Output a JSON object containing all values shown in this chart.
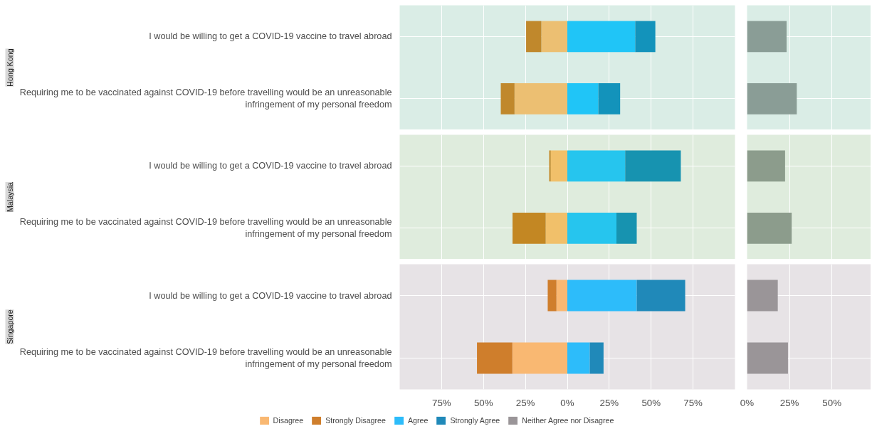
{
  "chart_data": [
    {
      "type": "bar",
      "orientation": "horizontal",
      "stacked": true,
      "title": "Hong Kong",
      "categories": [
        "I would be willing to get a COVID-19 vaccine to travel abroad",
        "Requiring me to be vaccinated against COVID-19 before travelling would be an unreasonable infringement of my personal freedom"
      ],
      "series": [
        {
          "color": "#ecbf72",
          "values": [
            -15.5,
            -31.5
          ]
        },
        {
          "color": "#c0882c",
          "values": [
            -9.1,
            -8.2
          ]
        },
        {
          "color": "#20c5f7",
          "values": [
            40.5,
            18.5
          ]
        },
        {
          "color": "#1393bb",
          "values": [
            12,
            13
          ]
        }
      ],
      "xlim": [
        -100,
        100
      ],
      "xticks": [
        {
          "value": -75,
          "label": "75%"
        },
        {
          "value": -50,
          "label": "50%"
        },
        {
          "value": -25,
          "label": "25%"
        },
        {
          "value": 0,
          "label": "0%"
        },
        {
          "value": 25,
          "label": "25%"
        },
        {
          "value": 50,
          "label": "50%"
        },
        {
          "value": 75,
          "label": "75%"
        }
      ],
      "grid": true,
      "tick_labels": "y"
    },
    {
      "type": "bar",
      "orientation": "horizontal",
      "categories": [
        "I would be willing to get a COVID-19 vaccine to travel abroad",
        "Requiring me to be vaccinated against COVID-19 before travelling would be an unreasonable infringement of my personal freedom"
      ],
      "series": [
        {
          "color": "#8a9d96",
          "values": [
            23.3,
            29.3
          ]
        }
      ],
      "xlim": [
        0,
        73
      ],
      "xticks": [
        {
          "value": 0,
          "label": "0%"
        },
        {
          "value": 25,
          "label": "25%"
        },
        {
          "value": 50,
          "label": "50%"
        }
      ],
      "grid": true,
      "tick_labels": false
    },
    {
      "type": "bar",
      "orientation": "horizontal",
      "stacked": true,
      "title": "Malaysia",
      "categories": [
        "I would be willing to get a COVID-19 vaccine to travel abroad",
        "Requiring me to be vaccinated against COVID-19 before travelling would be an unreasonable infringement of my personal freedom"
      ],
      "series": [
        {
          "color": "#f1c06a",
          "values": [
            -9.9,
            -12.9
          ]
        },
        {
          "color": "#c38723",
          "values": [
            -0.9,
            -19.8
          ]
        },
        {
          "color": "#26c5ee",
          "values": [
            34.5,
            29.3
          ]
        },
        {
          "color": "#1793b0",
          "values": [
            33.2,
            12.1
          ]
        }
      ],
      "xlim": [
        -100,
        100
      ],
      "xticks": [
        {
          "value": -75,
          "label": "75%"
        },
        {
          "value": -50,
          "label": "50%"
        },
        {
          "value": -25,
          "label": "25%"
        },
        {
          "value": 0,
          "label": "0%"
        },
        {
          "value": 25,
          "label": "25%"
        },
        {
          "value": 50,
          "label": "50%"
        },
        {
          "value": 75,
          "label": "75%"
        }
      ],
      "grid": true,
      "tick_labels": "y"
    },
    {
      "type": "bar",
      "orientation": "horizontal",
      "categories": [
        "I would be willing to get a COVID-19 vaccine to travel abroad",
        "Requiring me to be vaccinated against COVID-19 before travelling would be an unreasonable infringement of my personal freedom"
      ],
      "series": [
        {
          "color": "#8c9c8c",
          "values": [
            22.4,
            26.3
          ]
        }
      ],
      "xlim": [
        0,
        73
      ],
      "xticks": [
        {
          "value": 0,
          "label": "0%"
        },
        {
          "value": 25,
          "label": "25%"
        },
        {
          "value": 50,
          "label": "50%"
        }
      ],
      "grid": true,
      "tick_labels": false
    },
    {
      "type": "bar",
      "orientation": "horizontal",
      "stacked": true,
      "title": "Singapore",
      "categories": [
        "I would be willing to get a COVID-19 vaccine to travel abroad",
        "Requiring me to be vaccinated against COVID-19 before travelling would be an unreasonable infringement of my personal freedom"
      ],
      "series": [
        {
          "name": "Disagree",
          "color": "#f9b872",
          "values": [
            -6.5,
            -32.8
          ]
        },
        {
          "name": "Strongly Disagree",
          "color": "#cf7e2c",
          "values": [
            -5.2,
            -21.1
          ]
        },
        {
          "name": "Agree",
          "color": "#2dbcfa",
          "values": [
            41.4,
            13.4
          ]
        },
        {
          "name": "Strongly Agree",
          "color": "#2089b9",
          "values": [
            28.9,
            8.2
          ]
        }
      ],
      "xlim": [
        -100,
        100
      ],
      "xticks": [
        {
          "value": -75,
          "label": "75%"
        },
        {
          "value": -50,
          "label": "50%"
        },
        {
          "value": -25,
          "label": "25%"
        },
        {
          "value": 0,
          "label": "0%"
        },
        {
          "value": 25,
          "label": "25%"
        },
        {
          "value": 50,
          "label": "50%"
        },
        {
          "value": 75,
          "label": "75%"
        }
      ],
      "grid": true,
      "legend": "bottom"
    },
    {
      "type": "bar",
      "orientation": "horizontal",
      "categories": [
        "I would be willing to get a COVID-19 vaccine to travel abroad",
        "Requiring me to be vaccinated against COVID-19 before travelling would be an unreasonable infringement of my personal freedom"
      ],
      "series": [
        {
          "name": "Neither Agree nor Disagree",
          "color": "#9a9598",
          "values": [
            18.1,
            24.1
          ]
        }
      ],
      "xlim": [
        0,
        73
      ],
      "xticks": [
        {
          "value": 0,
          "label": "0%"
        },
        {
          "value": 25,
          "label": "25%"
        },
        {
          "value": 50,
          "label": "50%"
        }
      ],
      "grid": true,
      "tick_labels": "x",
      "legend": "bottom"
    }
  ]
}
